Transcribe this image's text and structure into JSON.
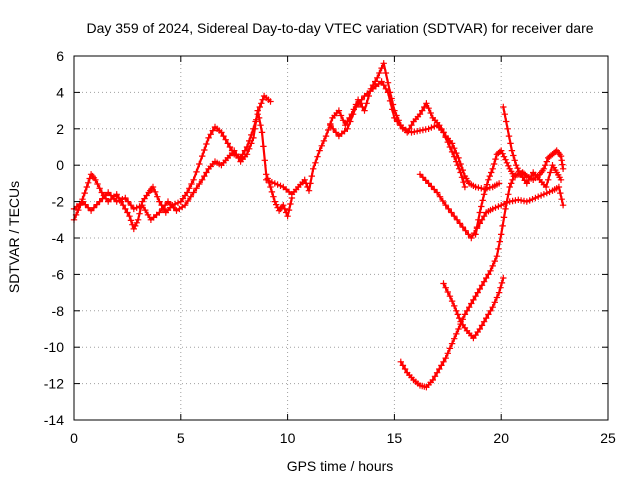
{
  "chart_data": {
    "type": "scatter",
    "title": "Day 359 of 2024, Sidereal Day-to-day VTEC variation (SDTVAR) for receiver dare",
    "xlabel": "GPS time / hours",
    "ylabel": "SDTVAR / TECUs",
    "xlim": [
      0,
      25
    ],
    "ylim": [
      -14,
      6
    ],
    "xticks": [
      0,
      5,
      10,
      15,
      20,
      25
    ],
    "yticks": [
      -14,
      -12,
      -10,
      -8,
      -6,
      -4,
      -2,
      0,
      2,
      4,
      6
    ],
    "grid": true,
    "marker": "+",
    "color": "#ff0000",
    "series": [
      {
        "points": [
          [
            0,
            -3.0
          ],
          [
            0.3,
            -2.2
          ],
          [
            0.6,
            -1.2
          ],
          [
            0.8,
            -0.5
          ],
          [
            1.0,
            -0.8
          ],
          [
            1.3,
            -1.5
          ],
          [
            1.6,
            -2.0
          ],
          [
            2.0,
            -1.6
          ],
          [
            2.3,
            -2.2
          ],
          [
            2.6,
            -2.8
          ],
          [
            2.8,
            -3.5
          ],
          [
            3.0,
            -3.0
          ],
          [
            3.2,
            -2.0
          ],
          [
            3.5,
            -1.5
          ],
          [
            3.7,
            -1.2
          ],
          [
            4.0,
            -2.0
          ],
          [
            4.3,
            -2.6
          ],
          [
            4.6,
            -2.2
          ],
          [
            5.0,
            -2.0
          ],
          [
            5.3,
            -1.5
          ],
          [
            5.6,
            -0.8
          ],
          [
            6.0,
            0.5
          ],
          [
            6.3,
            1.5
          ],
          [
            6.6,
            2.1
          ],
          [
            6.9,
            1.8
          ],
          [
            7.2,
            1.2
          ],
          [
            7.5,
            0.6
          ],
          [
            7.8,
            0.4
          ],
          [
            8.1,
            1.0
          ],
          [
            8.4,
            2.0
          ],
          [
            8.7,
            3.2
          ],
          [
            8.9,
            3.8
          ],
          [
            9.2,
            3.5
          ]
        ]
      },
      {
        "points": [
          [
            0,
            -2.4
          ],
          [
            0.4,
            -2.0
          ],
          [
            0.8,
            -2.5
          ],
          [
            1.2,
            -2.0
          ],
          [
            1.6,
            -1.5
          ],
          [
            2.0,
            -2.0
          ],
          [
            2.4,
            -1.8
          ],
          [
            2.8,
            -2.4
          ],
          [
            3.2,
            -2.2
          ],
          [
            3.6,
            -3.0
          ],
          [
            4.0,
            -2.6
          ],
          [
            4.4,
            -2.0
          ],
          [
            4.8,
            -2.5
          ],
          [
            5.2,
            -2.2
          ],
          [
            5.6,
            -1.5
          ],
          [
            6.0,
            -0.8
          ],
          [
            6.3,
            -0.2
          ],
          [
            6.6,
            0.2
          ],
          [
            6.9,
            0.0
          ],
          [
            7.2,
            0.4
          ],
          [
            7.5,
            0.8
          ],
          [
            7.8,
            0.2
          ],
          [
            8.1,
            0.6
          ],
          [
            8.4,
            1.5
          ],
          [
            8.6,
            3.0
          ],
          [
            8.8,
            1.8
          ],
          [
            9.0,
            -0.5
          ],
          [
            9.2,
            -1.2
          ],
          [
            9.4,
            -2.0
          ],
          [
            9.6,
            -2.5
          ],
          [
            9.8,
            -2.2
          ],
          [
            10.0,
            -2.8
          ],
          [
            10.2,
            -1.8
          ]
        ]
      },
      {
        "points": [
          [
            9.0,
            -0.8
          ],
          [
            9.4,
            -1.0
          ],
          [
            9.8,
            -1.2
          ],
          [
            10.2,
            -1.6
          ],
          [
            10.5,
            -1.2
          ],
          [
            10.8,
            -0.8
          ],
          [
            11.0,
            -1.4
          ],
          [
            11.2,
            -0.2
          ],
          [
            11.5,
            0.8
          ],
          [
            11.8,
            1.6
          ],
          [
            12.1,
            2.6
          ],
          [
            12.4,
            3.0
          ],
          [
            12.7,
            2.2
          ],
          [
            13.0,
            2.8
          ],
          [
            13.3,
            3.6
          ],
          [
            13.6,
            3.0
          ],
          [
            13.9,
            4.2
          ],
          [
            14.2,
            4.8
          ],
          [
            14.5,
            5.6
          ],
          [
            14.8,
            4.0
          ],
          [
            15.0,
            3.0
          ],
          [
            15.3,
            2.2
          ],
          [
            15.6,
            1.8
          ],
          [
            15.9,
            2.4
          ],
          [
            16.2,
            2.8
          ],
          [
            16.5,
            3.4
          ],
          [
            16.8,
            2.6
          ],
          [
            17.1,
            2.2
          ],
          [
            17.4,
            1.6
          ],
          [
            17.7,
            1.2
          ],
          [
            18.0,
            0.4
          ],
          [
            18.3,
            -0.6
          ],
          [
            18.5,
            -1.0
          ],
          [
            18.8,
            -1.2
          ],
          [
            19.2,
            -1.3
          ],
          [
            19.6,
            -1.2
          ],
          [
            19.9,
            -1.0
          ]
        ]
      },
      {
        "points": [
          [
            12.0,
            2.2
          ],
          [
            12.4,
            1.6
          ],
          [
            12.8,
            2.0
          ],
          [
            13.2,
            3.2
          ],
          [
            13.6,
            3.8
          ],
          [
            14.0,
            4.2
          ],
          [
            14.4,
            4.6
          ],
          [
            14.7,
            4.0
          ],
          [
            15.0,
            2.6
          ],
          [
            15.4,
            2.0
          ],
          [
            15.8,
            1.8
          ],
          [
            16.2,
            1.9
          ],
          [
            16.6,
            2.0
          ],
          [
            17.0,
            2.2
          ],
          [
            17.3,
            1.8
          ],
          [
            17.6,
            1.0
          ],
          [
            17.9,
            0.2
          ],
          [
            18.1,
            -0.4
          ],
          [
            18.3,
            -1.2
          ]
        ]
      },
      {
        "points": [
          [
            16.2,
            -0.5
          ],
          [
            16.6,
            -1.0
          ],
          [
            17.0,
            -1.5
          ],
          [
            17.4,
            -2.2
          ],
          [
            17.8,
            -2.8
          ],
          [
            18.2,
            -3.4
          ],
          [
            18.6,
            -4.0
          ],
          [
            19.0,
            -3.2
          ],
          [
            19.3,
            -2.6
          ],
          [
            19.6,
            -2.4
          ],
          [
            20.0,
            -2.2
          ],
          [
            20.4,
            -2.0
          ],
          [
            20.8,
            -1.9
          ],
          [
            21.2,
            -2.0
          ],
          [
            21.6,
            -1.8
          ],
          [
            22.0,
            -1.6
          ],
          [
            22.4,
            -1.4
          ],
          [
            22.7,
            -1.2
          ],
          [
            22.9,
            -2.2
          ]
        ]
      },
      {
        "points": [
          [
            18.8,
            -3.8
          ],
          [
            19.0,
            -2.6
          ],
          [
            19.2,
            -1.6
          ],
          [
            19.4,
            -0.8
          ],
          [
            19.6,
            -0.2
          ],
          [
            19.8,
            0.6
          ],
          [
            20.0,
            0.8
          ],
          [
            20.2,
            0.3
          ],
          [
            20.4,
            -0.2
          ],
          [
            20.6,
            -0.6
          ],
          [
            20.8,
            -0.5
          ],
          [
            21.0,
            -0.4
          ],
          [
            21.2,
            -0.6
          ],
          [
            21.5,
            -0.8
          ],
          [
            21.8,
            -0.5
          ],
          [
            22.0,
            -0.2
          ],
          [
            22.2,
            0.4
          ],
          [
            22.4,
            0.6
          ],
          [
            22.6,
            0.8
          ],
          [
            22.8,
            0.5
          ],
          [
            22.9,
            -0.2
          ]
        ]
      },
      {
        "points": [
          [
            20.1,
            3.2
          ],
          [
            20.3,
            2.0
          ],
          [
            20.5,
            0.8
          ],
          [
            20.7,
            0.0
          ],
          [
            20.9,
            -0.5
          ],
          [
            21.2,
            -1.0
          ],
          [
            21.5,
            -0.4
          ],
          [
            21.8,
            -0.8
          ],
          [
            22.1,
            -1.2
          ],
          [
            22.4,
            0.0
          ],
          [
            22.6,
            -0.4
          ],
          [
            22.8,
            -0.8
          ]
        ]
      },
      {
        "points": [
          [
            15.3,
            -10.8
          ],
          [
            15.6,
            -11.4
          ],
          [
            15.9,
            -11.8
          ],
          [
            16.2,
            -12.1
          ],
          [
            16.5,
            -12.2
          ],
          [
            16.8,
            -11.8
          ],
          [
            17.1,
            -11.2
          ],
          [
            17.4,
            -10.6
          ],
          [
            17.7,
            -9.8
          ],
          [
            18.0,
            -9.0
          ],
          [
            18.3,
            -8.2
          ],
          [
            18.6,
            -7.6
          ],
          [
            18.9,
            -7.0
          ],
          [
            19.2,
            -6.4
          ],
          [
            19.5,
            -5.8
          ],
          [
            19.8,
            -5.0
          ],
          [
            20.0,
            -3.8
          ],
          [
            20.2,
            -2.4
          ],
          [
            20.4,
            -1.2
          ],
          [
            20.6,
            -0.6
          ]
        ]
      },
      {
        "points": [
          [
            17.3,
            -6.5
          ],
          [
            17.6,
            -7.2
          ],
          [
            17.9,
            -8.0
          ],
          [
            18.1,
            -8.6
          ],
          [
            18.4,
            -9.1
          ],
          [
            18.7,
            -9.5
          ],
          [
            19.0,
            -9.0
          ],
          [
            19.3,
            -8.4
          ],
          [
            19.6,
            -7.8
          ],
          [
            19.9,
            -7.0
          ],
          [
            20.1,
            -6.2
          ]
        ]
      }
    ]
  }
}
